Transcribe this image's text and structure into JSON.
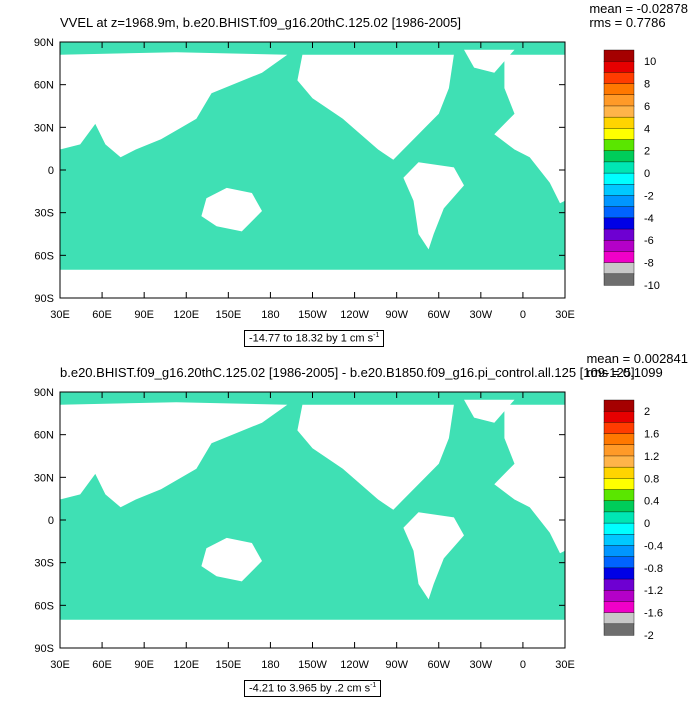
{
  "panels": [
    {
      "title": "VVEL at z=1968.9m, b.e20.BHIST.f09_g16.20thC.125.02 [1986-2005]",
      "stats": {
        "mean": "mean = -0.02878",
        "rms": "rms = 0.7786"
      },
      "range_label": "-14.77 to 18.32 by 1 cm s",
      "range_unit_exp": "-1",
      "colorbar": {
        "labels": [
          "10",
          "8",
          "6",
          "4",
          "2",
          "0",
          "-2",
          "-4",
          "-6",
          "-8",
          "-10"
        ],
        "colors": [
          "#a50000",
          "#e60000",
          "#ff3c00",
          "#ff7800",
          "#ff9a28",
          "#ffb44a",
          "#ffd400",
          "#ffff00",
          "#5ae600",
          "#00cd5a",
          "#00e6b4",
          "#00ffff",
          "#00c8ff",
          "#0096ff",
          "#0064ff",
          "#0000e6",
          "#6e00d2",
          "#b400c8",
          "#f000c8",
          "#c8c8c8",
          "#6e6e6e"
        ]
      }
    },
    {
      "title": "b.e20.BHIST.f09_g16.20thC.125.02 [1986-2005] - b.e20.B1850.f09_g16.pi_control.all.125 [109-125]",
      "stats": {
        "mean": "mean = 0.002841",
        "rms": "rms = 0.1099"
      },
      "range_label": "-4.21 to 3.965 by .2 cm s",
      "range_unit_exp": "-1",
      "colorbar": {
        "labels": [
          "2",
          "1.6",
          "1.2",
          "0.8",
          "0.4",
          "0",
          "-0.4",
          "-0.8",
          "-1.2",
          "-1.6",
          "-2"
        ],
        "colors": [
          "#a50000",
          "#e60000",
          "#ff3c00",
          "#ff7800",
          "#ff9a28",
          "#ffb44a",
          "#ffd400",
          "#ffff00",
          "#5ae600",
          "#00cd5a",
          "#00e6b4",
          "#00ffff",
          "#00c8ff",
          "#0096ff",
          "#0064ff",
          "#0000e6",
          "#6e00d2",
          "#b400c8",
          "#f000c8",
          "#c8c8c8",
          "#6e6e6e"
        ]
      }
    }
  ],
  "map": {
    "lat_labels": [
      "90N",
      "60N",
      "30N",
      "0",
      "30S",
      "60S",
      "90S"
    ],
    "lon_labels": [
      "30E",
      "60E",
      "90E",
      "120E",
      "150E",
      "180",
      "150W",
      "120W",
      "90W",
      "60W",
      "30W",
      "0",
      "30E"
    ],
    "ocean_color": "#3fe0b4",
    "land_color": "#ffffff"
  }
}
